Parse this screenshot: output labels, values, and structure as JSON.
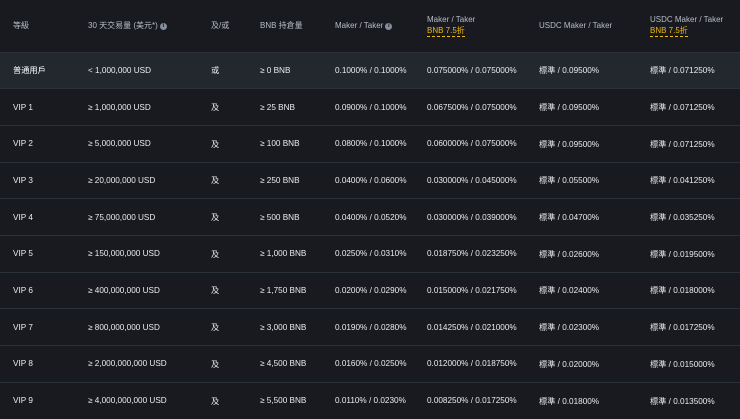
{
  "headers": {
    "level": "等級",
    "volume": "30 天交易量 (美元*)",
    "andor": "及/或",
    "bnb": "BNB 持倉量",
    "mt": "Maker / Taker",
    "mt_bnb": "Maker / Taker",
    "mt_bnb_sub": "BNB 7.5折",
    "usdc": "USDC Maker / Taker",
    "usdc_bnb": "USDC Maker / Taker",
    "usdc_bnb_sub": "BNB 7.5折"
  },
  "rows": [
    {
      "level": "普通用戶",
      "volume": "< 1,000,000 USD",
      "andor": "或",
      "bnb": "≥ 0 BNB",
      "mt": "0.1000% / 0.1000%",
      "mt_bnb": "0.075000% / 0.075000%",
      "usdc": "標準 / 0.09500%",
      "usdc_bnb": "標準 / 0.071250%"
    },
    {
      "level": "VIP 1",
      "volume": "≥ 1,000,000 USD",
      "andor": "及",
      "bnb": "≥ 25 BNB",
      "mt": "0.0900% / 0.1000%",
      "mt_bnb": "0.067500% / 0.075000%",
      "usdc": "標準 / 0.09500%",
      "usdc_bnb": "標準 / 0.071250%"
    },
    {
      "level": "VIP 2",
      "volume": "≥ 5,000,000 USD",
      "andor": "及",
      "bnb": "≥ 100 BNB",
      "mt": "0.0800% / 0.1000%",
      "mt_bnb": "0.060000% / 0.075000%",
      "usdc": "標準 / 0.09500%",
      "usdc_bnb": "標準 / 0.071250%"
    },
    {
      "level": "VIP 3",
      "volume": "≥ 20,000,000 USD",
      "andor": "及",
      "bnb": "≥ 250 BNB",
      "mt": "0.0400% / 0.0600%",
      "mt_bnb": "0.030000% / 0.045000%",
      "usdc": "標準 / 0.05500%",
      "usdc_bnb": "標準 / 0.041250%"
    },
    {
      "level": "VIP 4",
      "volume": "≥ 75,000,000 USD",
      "andor": "及",
      "bnb": "≥ 500 BNB",
      "mt": "0.0400% / 0.0520%",
      "mt_bnb": "0.030000% / 0.039000%",
      "usdc": "標準 / 0.04700%",
      "usdc_bnb": "標準 / 0.035250%"
    },
    {
      "level": "VIP 5",
      "volume": "≥ 150,000,000 USD",
      "andor": "及",
      "bnb": "≥ 1,000 BNB",
      "mt": "0.0250% / 0.0310%",
      "mt_bnb": "0.018750% / 0.023250%",
      "usdc": "標準 / 0.02600%",
      "usdc_bnb": "標準 / 0.019500%"
    },
    {
      "level": "VIP 6",
      "volume": "≥ 400,000,000 USD",
      "andor": "及",
      "bnb": "≥ 1,750 BNB",
      "mt": "0.0200% / 0.0290%",
      "mt_bnb": "0.015000% / 0.021750%",
      "usdc": "標準 / 0.02400%",
      "usdc_bnb": "標準 / 0.018000%"
    },
    {
      "level": "VIP 7",
      "volume": "≥ 800,000,000 USD",
      "andor": "及",
      "bnb": "≥ 3,000 BNB",
      "mt": "0.0190% / 0.0280%",
      "mt_bnb": "0.014250% / 0.021000%",
      "usdc": "標準 / 0.02300%",
      "usdc_bnb": "標準 / 0.017250%"
    },
    {
      "level": "VIP 8",
      "volume": "≥ 2,000,000,000 USD",
      "andor": "及",
      "bnb": "≥ 4,500 BNB",
      "mt": "0.0160% / 0.0250%",
      "mt_bnb": "0.012000% / 0.018750%",
      "usdc": "標準 / 0.02000%",
      "usdc_bnb": "標準 / 0.015000%"
    },
    {
      "level": "VIP 9",
      "volume": "≥ 4,000,000,000 USD",
      "andor": "及",
      "bnb": "≥ 5,500 BNB",
      "mt": "0.0110% / 0.0230%",
      "mt_bnb": "0.008250% / 0.017250%",
      "usdc": "標準 / 0.01800%",
      "usdc_bnb": "標準 / 0.013500%"
    }
  ]
}
